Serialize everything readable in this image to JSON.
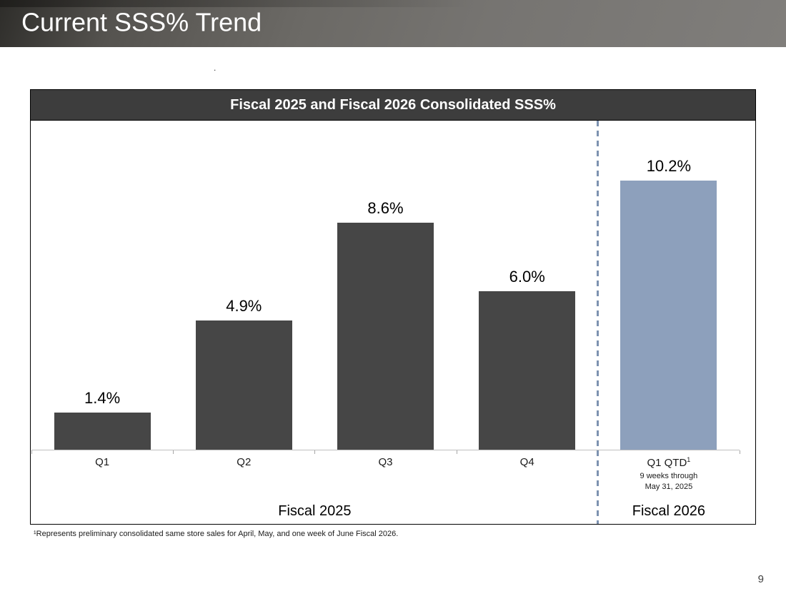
{
  "slide": {
    "title": "Current SSS% Trend",
    "stray_mark": ".",
    "footnote": "¹Represents preliminary consolidated same store sales for April, May, and one week of June Fiscal 2026.",
    "page_number": "9"
  },
  "chart_data": {
    "type": "bar",
    "title": "Fiscal 2025 and Fiscal 2026 Consolidated SSS%",
    "categories": [
      {
        "label": "Q1"
      },
      {
        "label": "Q2"
      },
      {
        "label": "Q3"
      },
      {
        "label": "Q4"
      },
      {
        "label": "Q1 QTD",
        "sup": "1",
        "sublines": [
          "9 weeks through",
          "May 31, 2025"
        ]
      }
    ],
    "values": [
      1.4,
      4.9,
      8.6,
      6.0,
      10.2
    ],
    "data_labels": [
      "1.4%",
      "4.9%",
      "8.6%",
      "6.0%",
      "10.2%"
    ],
    "bar_colors": [
      "#464646",
      "#464646",
      "#464646",
      "#464646",
      "#8da0bc"
    ],
    "group_labels": [
      {
        "label": "Fiscal 2025",
        "from": 0,
        "to": 3
      },
      {
        "label": "Fiscal 2026",
        "from": 4,
        "to": 4
      }
    ],
    "divider_after_index": 3,
    "ylim": [
      0,
      12.3
    ],
    "gridlines": false,
    "legend": "none",
    "xlabel": "",
    "ylabel": "",
    "colors": {
      "bar_default": "#464646",
      "bar_highlight": "#8da0bc",
      "divider": "#7d92b0",
      "axis": "#bfbfbf",
      "title_bg": "#3d3d3d",
      "title_text": "#ffffff"
    }
  }
}
